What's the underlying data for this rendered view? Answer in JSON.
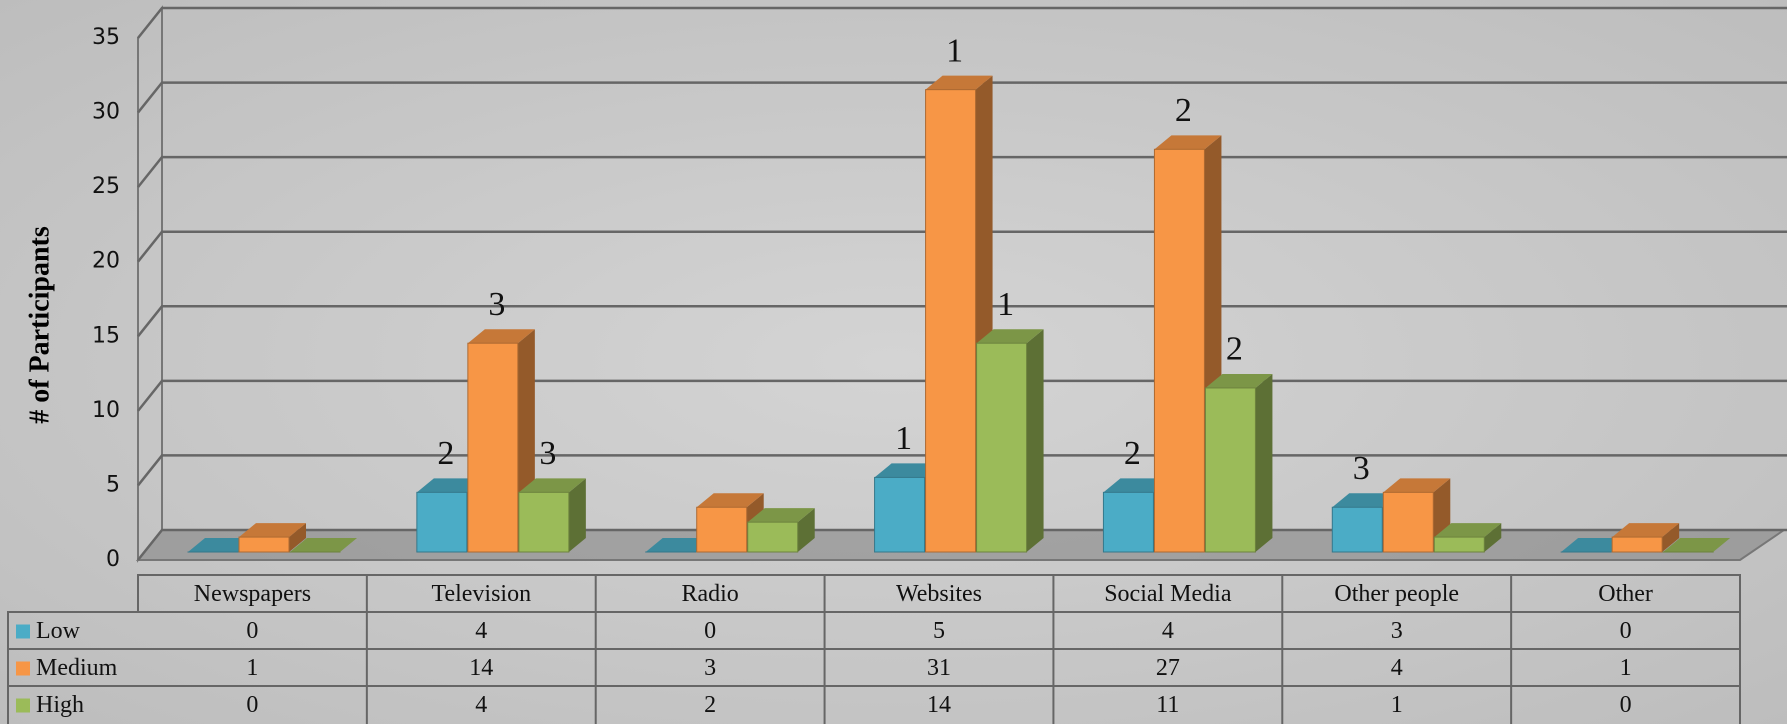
{
  "chart_data": {
    "type": "bar3d",
    "y_label": "# of Participants",
    "categories": [
      "Newspapers",
      "Television",
      "Radio",
      "Websites",
      "Social Media",
      "Other people",
      "Other"
    ],
    "series": [
      {
        "name": "Low",
        "color": "#4bacc6",
        "values": [
          0,
          4,
          0,
          5,
          4,
          3,
          0
        ],
        "annotations": [
          null,
          "2",
          null,
          "1",
          "2",
          "3",
          null
        ]
      },
      {
        "name": "Medium",
        "color": "#f79646",
        "values": [
          1,
          14,
          3,
          31,
          27,
          4,
          1
        ],
        "annotations": [
          null,
          "3",
          null,
          "1",
          "2",
          null,
          null
        ]
      },
      {
        "name": "High",
        "color": "#9bbb59",
        "values": [
          0,
          4,
          2,
          14,
          11,
          1,
          0
        ],
        "annotations": [
          null,
          "3",
          null,
          "1",
          "2",
          null,
          null
        ]
      }
    ],
    "ylim": [
      0,
      35
    ],
    "yticks": [
      0,
      5,
      10,
      15,
      20,
      25,
      30,
      35
    ],
    "grid": true,
    "data_table": true
  }
}
